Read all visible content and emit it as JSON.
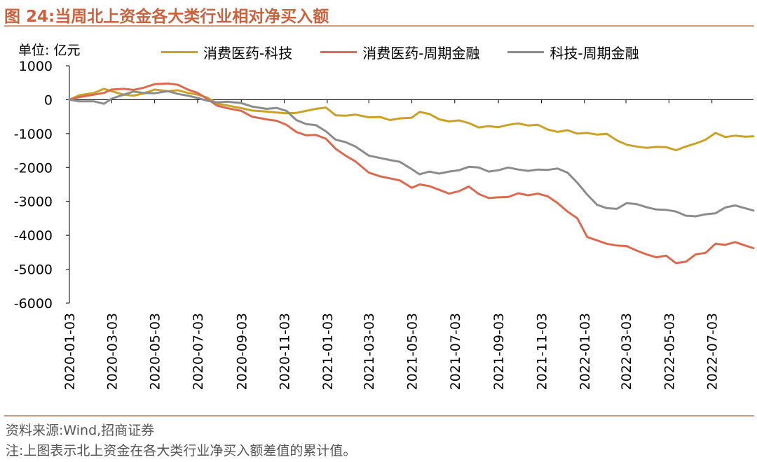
{
  "figure": {
    "title": "图 24:当周北上资金各大类行业相对净买入额",
    "unit_label": "单位: 亿元",
    "source": "资料来源:Wind,招商证券",
    "remark": "注:上图表示北上资金在各大类行业净买入额差值的累计值。"
  },
  "chart_data": {
    "type": "line",
    "title": "当周北上资金各大类行业相对净买入额",
    "xlabel": "",
    "ylabel": "亿元",
    "ylim": [
      -6000,
      1000
    ],
    "yticks": [
      1000,
      0,
      -1000,
      -2000,
      -3000,
      -4000,
      -5000,
      -6000
    ],
    "ytick_labels": [
      "1000",
      "0",
      "-1000",
      "-2000",
      "-3000",
      "-4000",
      "-5000",
      "-6000"
    ],
    "xtick_labels": [
      "2020-01-03",
      "2020-03-03",
      "2020-05-03",
      "2020-07-03",
      "2020-09-03",
      "2020-11-03",
      "2021-01-03",
      "2021-03-03",
      "2021-05-03",
      "2021-07-03",
      "2021-09-03",
      "2021-11-03",
      "2022-01-03",
      "2022-03-03",
      "2022-05-03",
      "2022-07-03"
    ],
    "xtick_dates": [
      "2020-01-03",
      "2020-03-03",
      "2020-05-03",
      "2020-07-03",
      "2020-09-03",
      "2020-11-03",
      "2021-01-03",
      "2021-03-03",
      "2021-05-03",
      "2021-07-03",
      "2021-09-03",
      "2021-11-03",
      "2022-01-03",
      "2022-03-03",
      "2022-05-03",
      "2022-07-03"
    ],
    "x_range": [
      "2020-01-03",
      "2022-08-31"
    ],
    "grid": false,
    "legend_position": "top",
    "series": [
      {
        "name": "消费医药-科技",
        "color": "#c9a227",
        "points": [
          [
            "2020-01-03",
            0
          ],
          [
            "2020-01-17",
            130
          ],
          [
            "2020-02-07",
            200
          ],
          [
            "2020-02-21",
            320
          ],
          [
            "2020-03-03",
            250
          ],
          [
            "2020-03-20",
            150
          ],
          [
            "2020-04-03",
            120
          ],
          [
            "2020-04-17",
            180
          ],
          [
            "2020-05-03",
            300
          ],
          [
            "2020-05-22",
            250
          ],
          [
            "2020-06-05",
            280
          ],
          [
            "2020-06-19",
            200
          ],
          [
            "2020-07-03",
            150
          ],
          [
            "2020-07-17",
            60
          ],
          [
            "2020-07-31",
            -120
          ],
          [
            "2020-08-14",
            -170
          ],
          [
            "2020-09-03",
            -250
          ],
          [
            "2020-09-18",
            -320
          ],
          [
            "2020-10-09",
            -350
          ],
          [
            "2020-10-23",
            -380
          ],
          [
            "2020-11-06",
            -400
          ],
          [
            "2020-11-20",
            -390
          ],
          [
            "2020-12-04",
            -330
          ],
          [
            "2020-12-18",
            -270
          ],
          [
            "2021-01-01",
            -230
          ],
          [
            "2021-01-15",
            -460
          ],
          [
            "2021-01-29",
            -470
          ],
          [
            "2021-02-12",
            -440
          ],
          [
            "2021-03-03",
            -520
          ],
          [
            "2021-03-19",
            -510
          ],
          [
            "2021-04-02",
            -600
          ],
          [
            "2021-04-16",
            -550
          ],
          [
            "2021-05-03",
            -530
          ],
          [
            "2021-05-14",
            -360
          ],
          [
            "2021-05-28",
            -420
          ],
          [
            "2021-06-11",
            -580
          ],
          [
            "2021-06-25",
            -640
          ],
          [
            "2021-07-09",
            -610
          ],
          [
            "2021-07-23",
            -690
          ],
          [
            "2021-08-06",
            -820
          ],
          [
            "2021-08-20",
            -780
          ],
          [
            "2021-09-03",
            -810
          ],
          [
            "2021-09-17",
            -740
          ],
          [
            "2021-10-01",
            -700
          ],
          [
            "2021-10-15",
            -760
          ],
          [
            "2021-10-29",
            -740
          ],
          [
            "2021-11-12",
            -880
          ],
          [
            "2021-11-26",
            -950
          ],
          [
            "2021-12-10",
            -900
          ],
          [
            "2021-12-24",
            -1000
          ],
          [
            "2022-01-07",
            -980
          ],
          [
            "2022-01-21",
            -1030
          ],
          [
            "2022-02-04",
            -1010
          ],
          [
            "2022-02-18",
            -1200
          ],
          [
            "2022-03-04",
            -1330
          ],
          [
            "2022-03-18",
            -1380
          ],
          [
            "2022-04-01",
            -1420
          ],
          [
            "2022-04-15",
            -1390
          ],
          [
            "2022-04-29",
            -1400
          ],
          [
            "2022-05-13",
            -1490
          ],
          [
            "2022-05-27",
            -1380
          ],
          [
            "2022-06-10",
            -1290
          ],
          [
            "2022-06-24",
            -1180
          ],
          [
            "2022-07-08",
            -980
          ],
          [
            "2022-07-22",
            -1100
          ],
          [
            "2022-08-05",
            -1060
          ],
          [
            "2022-08-19",
            -1090
          ],
          [
            "2022-08-31",
            -1080
          ]
        ]
      },
      {
        "name": "消费医药-周期金融",
        "color": "#d96b50",
        "points": [
          [
            "2020-01-03",
            0
          ],
          [
            "2020-01-17",
            80
          ],
          [
            "2020-02-07",
            150
          ],
          [
            "2020-02-21",
            200
          ],
          [
            "2020-03-03",
            300
          ],
          [
            "2020-03-20",
            320
          ],
          [
            "2020-04-03",
            290
          ],
          [
            "2020-04-17",
            350
          ],
          [
            "2020-05-03",
            460
          ],
          [
            "2020-05-22",
            480
          ],
          [
            "2020-06-05",
            440
          ],
          [
            "2020-06-19",
            300
          ],
          [
            "2020-07-03",
            200
          ],
          [
            "2020-07-17",
            20
          ],
          [
            "2020-07-31",
            -180
          ],
          [
            "2020-08-14",
            -250
          ],
          [
            "2020-09-03",
            -330
          ],
          [
            "2020-09-18",
            -500
          ],
          [
            "2020-10-09",
            -580
          ],
          [
            "2020-10-23",
            -620
          ],
          [
            "2020-11-06",
            -740
          ],
          [
            "2020-11-20",
            -950
          ],
          [
            "2020-12-04",
            -1050
          ],
          [
            "2020-12-18",
            -1040
          ],
          [
            "2021-01-01",
            -1150
          ],
          [
            "2021-01-15",
            -1450
          ],
          [
            "2021-01-29",
            -1650
          ],
          [
            "2021-02-12",
            -1820
          ],
          [
            "2021-03-03",
            -2150
          ],
          [
            "2021-03-19",
            -2260
          ],
          [
            "2021-04-02",
            -2320
          ],
          [
            "2021-04-16",
            -2380
          ],
          [
            "2021-05-03",
            -2600
          ],
          [
            "2021-05-14",
            -2500
          ],
          [
            "2021-05-28",
            -2550
          ],
          [
            "2021-06-11",
            -2660
          ],
          [
            "2021-06-25",
            -2770
          ],
          [
            "2021-07-09",
            -2700
          ],
          [
            "2021-07-23",
            -2560
          ],
          [
            "2021-08-06",
            -2780
          ],
          [
            "2021-08-20",
            -2900
          ],
          [
            "2021-09-03",
            -2880
          ],
          [
            "2021-09-17",
            -2870
          ],
          [
            "2021-10-01",
            -2760
          ],
          [
            "2021-10-15",
            -2820
          ],
          [
            "2021-10-29",
            -2770
          ],
          [
            "2021-11-12",
            -2850
          ],
          [
            "2021-11-26",
            -3050
          ],
          [
            "2021-12-10",
            -3300
          ],
          [
            "2021-12-24",
            -3500
          ],
          [
            "2022-01-07",
            -4050
          ],
          [
            "2022-01-21",
            -4150
          ],
          [
            "2022-02-04",
            -4250
          ],
          [
            "2022-02-18",
            -4300
          ],
          [
            "2022-03-04",
            -4320
          ],
          [
            "2022-03-18",
            -4450
          ],
          [
            "2022-04-01",
            -4560
          ],
          [
            "2022-04-15",
            -4650
          ],
          [
            "2022-04-29",
            -4600
          ],
          [
            "2022-05-13",
            -4820
          ],
          [
            "2022-05-27",
            -4780
          ],
          [
            "2022-06-10",
            -4560
          ],
          [
            "2022-06-24",
            -4520
          ],
          [
            "2022-07-08",
            -4250
          ],
          [
            "2022-07-22",
            -4280
          ],
          [
            "2022-08-05",
            -4200
          ],
          [
            "2022-08-19",
            -4300
          ],
          [
            "2022-08-31",
            -4380
          ]
        ]
      },
      {
        "name": "科技-周期金融",
        "color": "#8c8c8c",
        "points": [
          [
            "2020-01-03",
            0
          ],
          [
            "2020-01-17",
            -50
          ],
          [
            "2020-02-07",
            -50
          ],
          [
            "2020-02-21",
            -120
          ],
          [
            "2020-03-03",
            30
          ],
          [
            "2020-03-20",
            150
          ],
          [
            "2020-04-03",
            240
          ],
          [
            "2020-04-17",
            200
          ],
          [
            "2020-05-03",
            190
          ],
          [
            "2020-05-22",
            250
          ],
          [
            "2020-06-05",
            170
          ],
          [
            "2020-06-19",
            120
          ],
          [
            "2020-07-03",
            50
          ],
          [
            "2020-07-17",
            -30
          ],
          [
            "2020-07-31",
            -80
          ],
          [
            "2020-08-14",
            -60
          ],
          [
            "2020-09-03",
            -100
          ],
          [
            "2020-09-18",
            -200
          ],
          [
            "2020-10-09",
            -270
          ],
          [
            "2020-10-23",
            -240
          ],
          [
            "2020-11-06",
            -330
          ],
          [
            "2020-11-20",
            -600
          ],
          [
            "2020-12-04",
            -720
          ],
          [
            "2020-12-18",
            -750
          ],
          [
            "2021-01-01",
            -930
          ],
          [
            "2021-01-15",
            -1180
          ],
          [
            "2021-01-29",
            -1250
          ],
          [
            "2021-02-12",
            -1380
          ],
          [
            "2021-03-03",
            -1650
          ],
          [
            "2021-03-19",
            -1720
          ],
          [
            "2021-04-02",
            -1780
          ],
          [
            "2021-04-16",
            -1830
          ],
          [
            "2021-05-03",
            -2050
          ],
          [
            "2021-05-14",
            -2200
          ],
          [
            "2021-05-28",
            -2120
          ],
          [
            "2021-06-11",
            -2180
          ],
          [
            "2021-06-25",
            -2120
          ],
          [
            "2021-07-09",
            -2080
          ],
          [
            "2021-07-23",
            -1980
          ],
          [
            "2021-08-06",
            -2000
          ],
          [
            "2021-08-20",
            -2120
          ],
          [
            "2021-09-03",
            -2080
          ],
          [
            "2021-09-17",
            -2000
          ],
          [
            "2021-10-01",
            -2060
          ],
          [
            "2021-10-15",
            -2100
          ],
          [
            "2021-10-29",
            -2060
          ],
          [
            "2021-11-12",
            -2070
          ],
          [
            "2021-11-26",
            -2030
          ],
          [
            "2021-12-10",
            -2150
          ],
          [
            "2021-12-24",
            -2450
          ],
          [
            "2022-01-07",
            -2800
          ],
          [
            "2022-01-21",
            -3100
          ],
          [
            "2022-02-04",
            -3200
          ],
          [
            "2022-02-18",
            -3220
          ],
          [
            "2022-03-04",
            -3050
          ],
          [
            "2022-03-18",
            -3080
          ],
          [
            "2022-04-01",
            -3170
          ],
          [
            "2022-04-15",
            -3240
          ],
          [
            "2022-04-29",
            -3250
          ],
          [
            "2022-05-13",
            -3300
          ],
          [
            "2022-05-27",
            -3420
          ],
          [
            "2022-06-10",
            -3440
          ],
          [
            "2022-06-24",
            -3380
          ],
          [
            "2022-07-08",
            -3350
          ],
          [
            "2022-07-22",
            -3180
          ],
          [
            "2022-08-05",
            -3120
          ],
          [
            "2022-08-19",
            -3200
          ],
          [
            "2022-08-31",
            -3270
          ]
        ]
      }
    ]
  }
}
